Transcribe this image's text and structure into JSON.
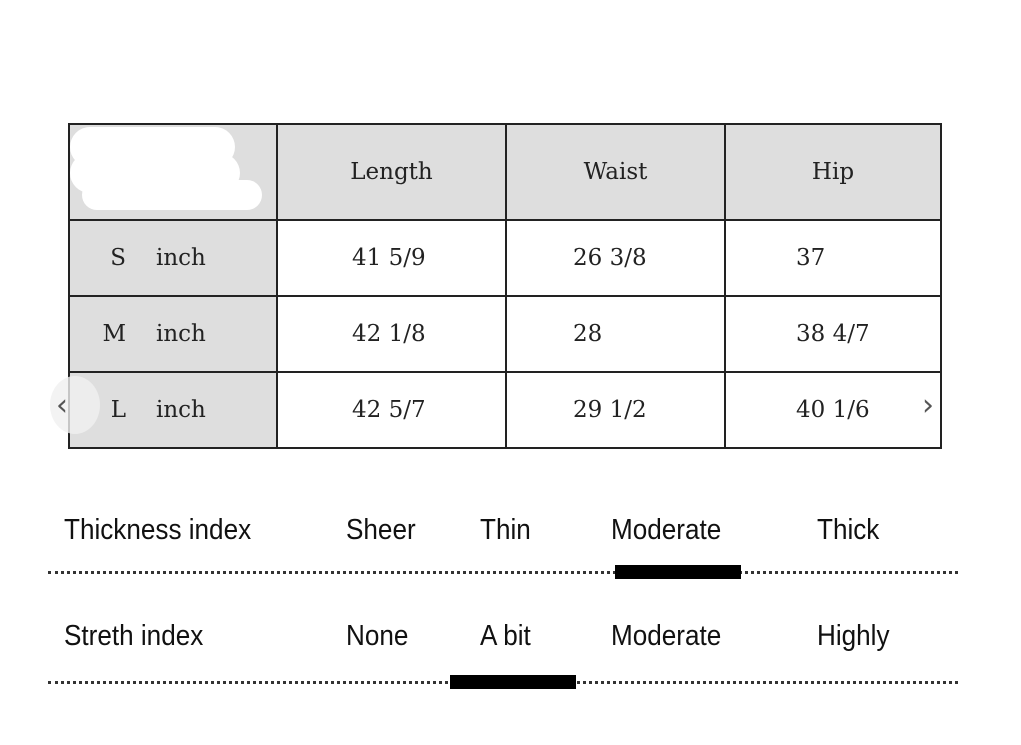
{
  "table": {
    "headers": [
      "",
      "Length",
      "Waist",
      "Hip"
    ],
    "rows": [
      {
        "size": "S",
        "unit": "inch",
        "length": "41 5/9",
        "waist": "26 3/8",
        "hip": "37"
      },
      {
        "size": "M",
        "unit": "inch",
        "length": "42 1/8",
        "waist": "28",
        "hip": "38 4/7"
      },
      {
        "size": "L",
        "unit": "inch",
        "length": "42 5/7",
        "waist": "29 1/2",
        "hip": "40 1/6"
      }
    ]
  },
  "thickness": {
    "label": "Thickness index",
    "options": [
      "Sheer",
      "Thin",
      "Moderate",
      "Thick"
    ],
    "selected": "Moderate"
  },
  "stretch": {
    "label": "Streth index",
    "options": [
      "None",
      "A bit",
      "Moderate",
      "Highly"
    ],
    "selected": "A bit"
  },
  "nav": {
    "prev_icon": "chevron-left-icon",
    "next_icon": "chevron-right-icon",
    "prev": "‹",
    "next": "›"
  }
}
